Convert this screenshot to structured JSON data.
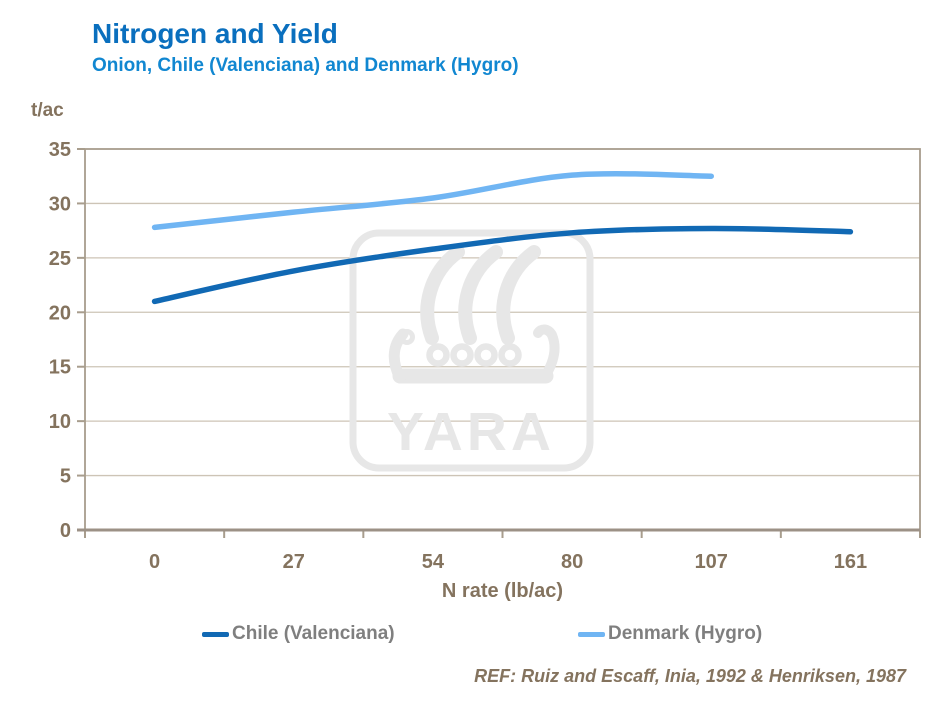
{
  "header": {
    "title": "Nitrogen and Yield",
    "subtitle": "Onion, Chile (Valenciana) and Denmark (Hygro)"
  },
  "chart_data": {
    "type": "line",
    "categories": [
      "0",
      "27",
      "54",
      "80",
      "107",
      "161"
    ],
    "series": [
      {
        "name": "Chile (Valenciana)",
        "color": "#1169B4",
        "values": [
          21.0,
          23.8,
          25.8,
          27.3,
          27.7,
          27.4
        ]
      },
      {
        "name": "Denmark (Hygro)",
        "color": "#70B5F3",
        "values": [
          27.8,
          29.2,
          30.5,
          32.6,
          32.5,
          null
        ]
      }
    ],
    "xlabel": "N rate (lb/ac)",
    "ylabel": "t/ac",
    "ylim": [
      0,
      35
    ],
    "ytick_step": 5,
    "grid": "horizontal",
    "legend_position": "bottom",
    "smooth_lines": true
  },
  "watermark": {
    "text": "YARA",
    "name": "yara-viking-ship-logo"
  },
  "footer": {
    "reference": "REF: Ruiz and Escaff, Inia, 1992 & Henriksen, 1987"
  },
  "colors": {
    "title_text": "#0A6FBE",
    "subtitle_text": "#1187D1",
    "axis_text": "#84735E",
    "legend_text": "#7F7F7F",
    "footer_text": "#84735E",
    "gridline": "#CDC4B6",
    "plot_border": "#A89D8D",
    "axis_line": "#9C9186",
    "watermark": "#E7E7E7",
    "background": "#FFFFFF"
  }
}
